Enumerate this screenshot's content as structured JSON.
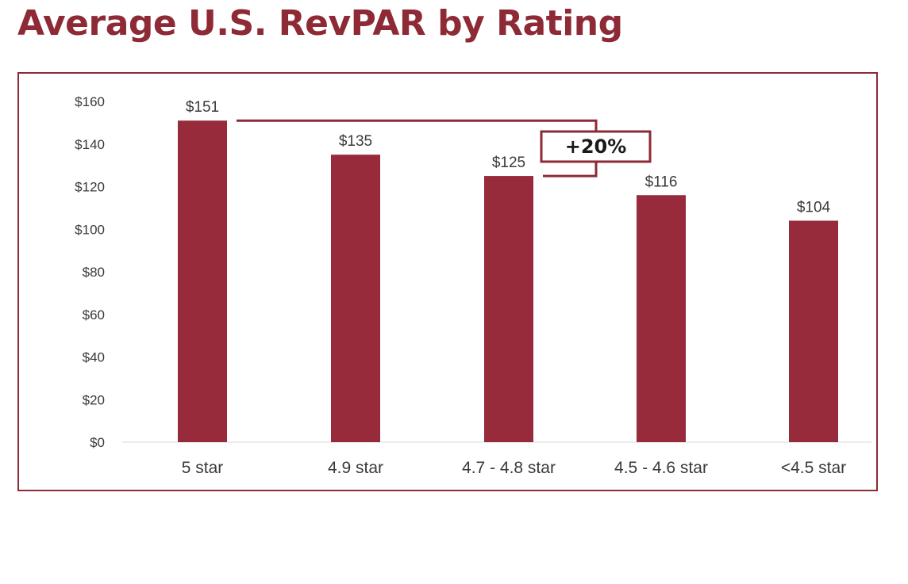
{
  "title": "Average U.S. RevPAR by Rating",
  "colors": {
    "brand": "#8e2a36",
    "bar": "#972b3b"
  },
  "chart_data": {
    "type": "bar",
    "title": "Average U.S. RevPAR by Rating",
    "xlabel": "",
    "ylabel": "",
    "categories": [
      "5 star",
      "4.9 star",
      "4.7 - 4.8 star",
      "4.5 - 4.6 star",
      "<4.5 star"
    ],
    "values": [
      151,
      135,
      125,
      116,
      104
    ],
    "value_labels": [
      "$151",
      "$135",
      "$125",
      "$116",
      "$104"
    ],
    "ylim": [
      0,
      160
    ],
    "yticks": [
      "$0",
      "$20",
      "$40",
      "$60",
      "$80",
      "$100",
      "$120",
      "$140",
      "$160"
    ],
    "grid": false,
    "legend": "none",
    "annotations": [
      {
        "text": "+20%",
        "from_category": "5 star",
        "to_category": "4.7 - 4.8 star"
      }
    ]
  }
}
